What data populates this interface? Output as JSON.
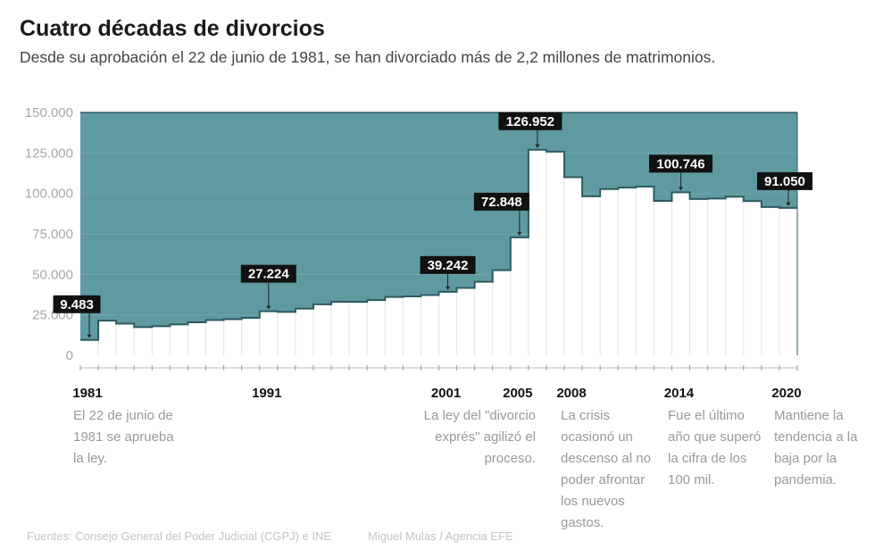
{
  "title": "Cuatro décadas de divorcios",
  "subtitle": "Desde su aprobación el 22 de junio de 1981, se han divorciado más de 2,2 millones de matrimonios.",
  "chart_data": {
    "type": "area",
    "subtype": "step",
    "title": "Cuatro décadas de divorcios",
    "xlabel": "",
    "ylabel": "",
    "ylim": [
      0,
      150000
    ],
    "yticks": [
      0,
      25000,
      50000,
      75000,
      100000,
      125000,
      150000
    ],
    "ytick_labels": [
      "0",
      "25.000",
      "50.000",
      "75.000",
      "100.000",
      "125.000",
      "150.000"
    ],
    "xtick_labels": [
      "1981",
      "1991",
      "2001",
      "2005",
      "2008",
      "2014",
      "2020"
    ],
    "x": [
      1981,
      1982,
      1983,
      1984,
      1985,
      1986,
      1987,
      1988,
      1989,
      1990,
      1991,
      1992,
      1993,
      1994,
      1995,
      1996,
      1997,
      1998,
      1999,
      2000,
      2001,
      2002,
      2003,
      2004,
      2005,
      2006,
      2007,
      2008,
      2009,
      2010,
      2011,
      2012,
      2013,
      2014,
      2015,
      2016,
      2017,
      2018,
      2019,
      2020
    ],
    "values": [
      9483,
      21463,
      19589,
      17461,
      18001,
      19125,
      20381,
      21750,
      22347,
      23191,
      27224,
      26783,
      28854,
      31522,
      33104,
      32989,
      34147,
      36072,
      36395,
      37205,
      39242,
      41621,
      45448,
      52591,
      72848,
      126952,
      125777,
      110036,
      98207,
      102690,
      103604,
      104262,
      95427,
      100746,
      96562,
      96824,
      97960,
      95254,
      91645,
      91050
    ],
    "data_labels": [
      {
        "year": 1981,
        "text": "9.483"
      },
      {
        "year": 1991,
        "text": "27.224"
      },
      {
        "year": 2001,
        "text": "39.242"
      },
      {
        "year": 2005,
        "text": "72.848"
      },
      {
        "year": 2006,
        "text": "126.952"
      },
      {
        "year": 2014,
        "text": "100.746"
      },
      {
        "year": 2020,
        "text": "91.050"
      }
    ],
    "colors": {
      "fill": "#5f9aa1",
      "line": "#2c5a60",
      "grid": "#e4e4e4"
    },
    "grid": true
  },
  "notes": [
    {
      "year": "1981",
      "text": "El 22 de junio de 1981 se aprueba la ley."
    },
    {
      "year": "2005",
      "text": "La ley del \"divorcio exprés\" agilizó el proceso."
    },
    {
      "year": "2008",
      "text": "La crisis ocasionó un descenso al no poder afrontar los nuevos gastos."
    },
    {
      "year": "2014",
      "text": "Fue el último año que superó la cifra de los 100 mil."
    },
    {
      "year": "2020",
      "text": "Mantiene la tendencia a la baja por la pandemia."
    }
  ],
  "source": "Fuentes: Consejo General del Poder Judicial (CGPJ) e INE",
  "credit": "Miguel Mulas / Agencia EFE"
}
